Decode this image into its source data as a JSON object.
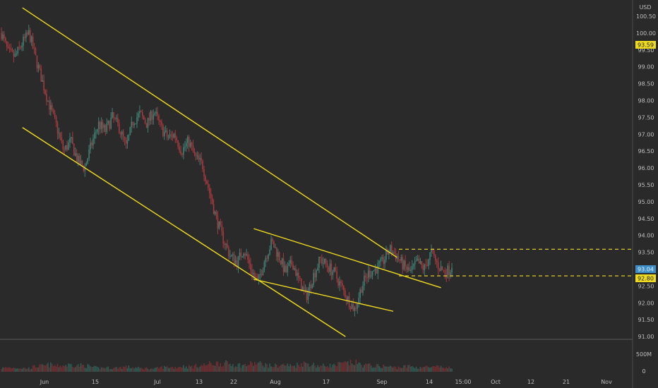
{
  "chart_data": {
    "type": "candlestick",
    "currency_label": "USD",
    "y_ticks": [
      "100.50",
      "100.00",
      "99.50",
      "99.00",
      "98.50",
      "98.00",
      "97.50",
      "97.00",
      "96.50",
      "96.00",
      "95.50",
      "95.00",
      "94.50",
      "94.00",
      "93.50",
      "93.00",
      "92.50",
      "92.00",
      "91.50",
      "91.00"
    ],
    "volume_ticks": [
      "500M",
      "0"
    ],
    "x_ticks": [
      "Jun",
      "15",
      "Jul",
      "13",
      "22",
      "Aug",
      "17",
      "Sep",
      "14",
      "15:00",
      "Oct",
      "12",
      "21",
      "Nov"
    ],
    "price_labels": {
      "upper_level": "93.59",
      "current": "93.04",
      "lower_level": "92.80"
    },
    "levels": [
      93.59,
      92.8
    ],
    "trendlines": [
      {
        "from": [
          "May 26",
          100.75
        ],
        "to": [
          "Sep 5",
          93.35
        ]
      },
      {
        "from": [
          "May 26",
          97.2
        ],
        "to": [
          "Aug 22",
          91.0
        ]
      },
      {
        "from": [
          "Jul 28",
          94.2
        ],
        "to": [
          "Sep 17",
          92.45
        ]
      },
      {
        "from": [
          "Jul 28",
          92.7
        ],
        "to": [
          "Sep 4",
          91.75
        ]
      }
    ],
    "price_path": [
      [
        100.0,
        5
      ],
      [
        99.4,
        6
      ],
      [
        99.3,
        6
      ],
      [
        99.7,
        5
      ],
      [
        100.0,
        5
      ],
      [
        99.2,
        8
      ],
      [
        98.5,
        8
      ],
      [
        97.8,
        10
      ],
      [
        97.2,
        8
      ],
      [
        96.5,
        9
      ],
      [
        96.8,
        10
      ],
      [
        96.2,
        9
      ],
      [
        96.0,
        9
      ],
      [
        96.7,
        7
      ],
      [
        97.3,
        5
      ],
      [
        97.1,
        6
      ],
      [
        97.5,
        5
      ],
      [
        97.2,
        6
      ],
      [
        96.6,
        7
      ],
      [
        97.4,
        6
      ],
      [
        97.6,
        5
      ],
      [
        97.3,
        5
      ],
      [
        97.7,
        4
      ],
      [
        97.2,
        6
      ],
      [
        96.9,
        7
      ],
      [
        97.0,
        6
      ],
      [
        96.5,
        8
      ],
      [
        96.8,
        7
      ],
      [
        96.3,
        8
      ],
      [
        96.1,
        9
      ],
      [
        95.3,
        11
      ],
      [
        94.5,
        12
      ],
      [
        93.9,
        12
      ],
      [
        93.4,
        11
      ],
      [
        93.2,
        10
      ],
      [
        93.6,
        9
      ],
      [
        93.0,
        11
      ],
      [
        92.6,
        12
      ],
      [
        93.3,
        10
      ],
      [
        93.8,
        8
      ],
      [
        93.4,
        9
      ],
      [
        92.9,
        10
      ],
      [
        93.2,
        8
      ],
      [
        92.6,
        11
      ],
      [
        92.2,
        12
      ],
      [
        92.8,
        10
      ],
      [
        93.3,
        8
      ],
      [
        93.1,
        9
      ],
      [
        92.9,
        9
      ],
      [
        92.5,
        11
      ],
      [
        92.1,
        12
      ],
      [
        91.8,
        13
      ],
      [
        92.5,
        10
      ],
      [
        92.9,
        9
      ],
      [
        93.0,
        8
      ],
      [
        93.2,
        8
      ],
      [
        93.6,
        7
      ],
      [
        93.4,
        6
      ],
      [
        93.1,
        7
      ],
      [
        92.9,
        8
      ],
      [
        93.2,
        6
      ],
      [
        93.0,
        7
      ],
      [
        93.5,
        6
      ],
      [
        93.1,
        7
      ],
      [
        92.9,
        6
      ],
      [
        93.04,
        5
      ]
    ]
  }
}
